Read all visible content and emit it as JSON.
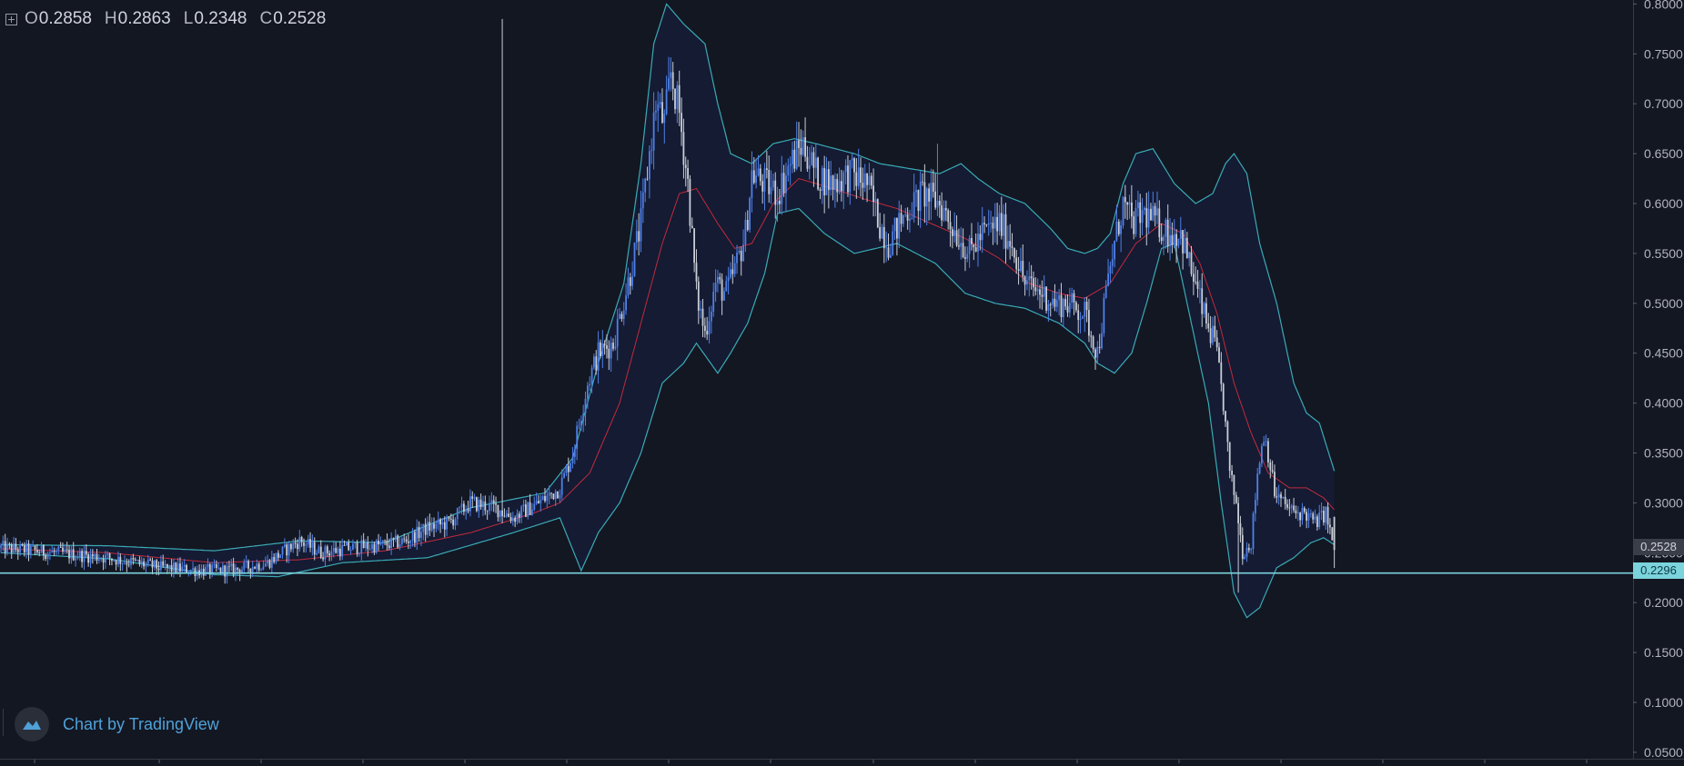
{
  "legend": {
    "o_key": "O",
    "o_val": "0.2858",
    "h_key": "H",
    "h_val": "0.2863",
    "l_key": "L",
    "l_val": "0.2348",
    "c_key": "C",
    "c_val": "0.2528"
  },
  "watermark": {
    "text": "Chart by TradingView"
  },
  "price_tags": {
    "last_price": "0.2528",
    "level": "0.2296"
  },
  "colors": {
    "background": "#131722",
    "up_candle": "#4f80e8",
    "down_candle": "#c9ced6",
    "band": "#3aaab5",
    "band_fill": "#151c35",
    "basis": "#c22a3c",
    "level_line": "#7bd3dc",
    "axis_text": "#b2b5be",
    "watermark_text": "#4fa1d8"
  },
  "chart_data": {
    "type": "candlestick",
    "title": "",
    "xlabel": "",
    "ylabel": "",
    "ylim": [
      0.045,
      0.8
    ],
    "y_ticks": [
      "0.8000",
      "0.7500",
      "0.7000",
      "0.6500",
      "0.6000",
      "0.5500",
      "0.5000",
      "0.4500",
      "0.4000",
      "0.3500",
      "0.3000",
      "0.2500",
      "0.2000",
      "0.1500",
      "0.1000",
      "0.0500"
    ],
    "indicator": "Bollinger Bands",
    "horizontal_level": 0.2296,
    "last_price": 0.2528,
    "last_bar": {
      "open": 0.2858,
      "high": 0.2863,
      "low": 0.2348,
      "close": 0.2528
    },
    "close_path": [
      [
        0,
        0.255
      ],
      [
        25,
        0.25
      ],
      [
        50,
        0.245
      ],
      [
        75,
        0.235
      ],
      [
        95,
        0.232
      ],
      [
        110,
        0.233
      ],
      [
        125,
        0.24
      ],
      [
        135,
        0.255
      ],
      [
        140,
        0.262
      ],
      [
        150,
        0.25
      ],
      [
        165,
        0.255
      ],
      [
        180,
        0.258
      ],
      [
        190,
        0.262
      ],
      [
        200,
        0.275
      ],
      [
        210,
        0.28
      ],
      [
        220,
        0.3
      ],
      [
        232,
        0.295
      ],
      [
        240,
        0.285
      ],
      [
        252,
        0.3
      ],
      [
        262,
        0.315
      ],
      [
        268,
        0.35
      ],
      [
        275,
        0.42
      ],
      [
        280,
        0.45
      ],
      [
        287,
        0.46
      ],
      [
        295,
        0.53
      ],
      [
        300,
        0.58
      ],
      [
        304,
        0.65
      ],
      [
        307,
        0.7
      ],
      [
        311,
        0.68
      ],
      [
        314,
        0.73
      ],
      [
        318,
        0.69
      ],
      [
        322,
        0.62
      ],
      [
        326,
        0.51
      ],
      [
        330,
        0.47
      ],
      [
        335,
        0.52
      ],
      [
        340,
        0.51
      ],
      [
        345,
        0.54
      ],
      [
        349,
        0.57
      ],
      [
        352,
        0.63
      ],
      [
        358,
        0.62
      ],
      [
        364,
        0.61
      ],
      [
        370,
        0.64
      ],
      [
        376,
        0.66
      ],
      [
        382,
        0.63
      ],
      [
        390,
        0.62
      ],
      [
        398,
        0.63
      ],
      [
        406,
        0.62
      ],
      [
        412,
        0.58
      ],
      [
        416,
        0.56
      ],
      [
        424,
        0.59
      ],
      [
        432,
        0.61
      ],
      [
        440,
        0.6
      ],
      [
        448,
        0.57
      ],
      [
        454,
        0.55
      ],
      [
        460,
        0.57
      ],
      [
        468,
        0.58
      ],
      [
        474,
        0.56
      ],
      [
        480,
        0.52
      ],
      [
        488,
        0.51
      ],
      [
        494,
        0.5
      ],
      [
        500,
        0.5
      ],
      [
        508,
        0.49
      ],
      [
        514,
        0.45
      ],
      [
        518,
        0.51
      ],
      [
        522,
        0.56
      ],
      [
        526,
        0.6
      ],
      [
        530,
        0.58
      ],
      [
        536,
        0.59
      ],
      [
        542,
        0.58
      ],
      [
        548,
        0.57
      ],
      [
        553,
        0.57
      ],
      [
        557,
        0.54
      ],
      [
        561,
        0.51
      ],
      [
        565,
        0.48
      ],
      [
        569,
        0.46
      ],
      [
        573,
        0.4
      ],
      [
        576,
        0.33
      ],
      [
        579,
        0.3
      ],
      [
        582,
        0.25
      ],
      [
        586,
        0.26
      ],
      [
        589,
        0.33
      ],
      [
        592,
        0.37
      ],
      [
        594,
        0.35
      ],
      [
        597,
        0.31
      ],
      [
        601,
        0.3
      ],
      [
        606,
        0.29
      ],
      [
        611,
        0.29
      ],
      [
        616,
        0.28
      ],
      [
        621,
        0.29
      ],
      [
        625,
        0.253
      ]
    ],
    "upper_band_path": [
      [
        0,
        0.258
      ],
      [
        50,
        0.257
      ],
      [
        100,
        0.252
      ],
      [
        140,
        0.262
      ],
      [
        180,
        0.26
      ],
      [
        220,
        0.295
      ],
      [
        255,
        0.31
      ],
      [
        268,
        0.345
      ],
      [
        280,
        0.44
      ],
      [
        292,
        0.52
      ],
      [
        300,
        0.64
      ],
      [
        306,
        0.76
      ],
      [
        312,
        0.8
      ],
      [
        320,
        0.78
      ],
      [
        330,
        0.76
      ],
      [
        336,
        0.7
      ],
      [
        342,
        0.65
      ],
      [
        352,
        0.64
      ],
      [
        362,
        0.66
      ],
      [
        372,
        0.665
      ],
      [
        382,
        0.66
      ],
      [
        400,
        0.65
      ],
      [
        412,
        0.64
      ],
      [
        426,
        0.635
      ],
      [
        440,
        0.63
      ],
      [
        450,
        0.64
      ],
      [
        458,
        0.625
      ],
      [
        468,
        0.61
      ],
      [
        480,
        0.6
      ],
      [
        492,
        0.575
      ],
      [
        500,
        0.555
      ],
      [
        508,
        0.55
      ],
      [
        514,
        0.555
      ],
      [
        520,
        0.57
      ],
      [
        526,
        0.62
      ],
      [
        532,
        0.65
      ],
      [
        540,
        0.655
      ],
      [
        550,
        0.62
      ],
      [
        560,
        0.6
      ],
      [
        568,
        0.61
      ],
      [
        574,
        0.64
      ],
      [
        578,
        0.65
      ],
      [
        584,
        0.63
      ],
      [
        590,
        0.56
      ],
      [
        598,
        0.5
      ],
      [
        606,
        0.42
      ],
      [
        612,
        0.39
      ],
      [
        618,
        0.38
      ],
      [
        625,
        0.332
      ]
    ],
    "lower_band_path": [
      [
        0,
        0.25
      ],
      [
        50,
        0.244
      ],
      [
        100,
        0.228
      ],
      [
        130,
        0.226
      ],
      [
        160,
        0.24
      ],
      [
        200,
        0.245
      ],
      [
        240,
        0.27
      ],
      [
        262,
        0.285
      ],
      [
        272,
        0.232
      ],
      [
        280,
        0.27
      ],
      [
        290,
        0.3
      ],
      [
        300,
        0.35
      ],
      [
        310,
        0.42
      ],
      [
        320,
        0.44
      ],
      [
        326,
        0.46
      ],
      [
        336,
        0.43
      ],
      [
        342,
        0.45
      ],
      [
        350,
        0.48
      ],
      [
        358,
        0.53
      ],
      [
        364,
        0.59
      ],
      [
        374,
        0.595
      ],
      [
        386,
        0.57
      ],
      [
        400,
        0.55
      ],
      [
        420,
        0.56
      ],
      [
        438,
        0.54
      ],
      [
        452,
        0.51
      ],
      [
        466,
        0.5
      ],
      [
        480,
        0.495
      ],
      [
        496,
        0.48
      ],
      [
        508,
        0.46
      ],
      [
        514,
        0.44
      ],
      [
        522,
        0.43
      ],
      [
        530,
        0.45
      ],
      [
        537,
        0.5
      ],
      [
        544,
        0.555
      ],
      [
        550,
        0.56
      ],
      [
        558,
        0.48
      ],
      [
        566,
        0.4
      ],
      [
        572,
        0.3
      ],
      [
        578,
        0.21
      ],
      [
        584,
        0.185
      ],
      [
        590,
        0.195
      ],
      [
        598,
        0.235
      ],
      [
        606,
        0.245
      ],
      [
        614,
        0.26
      ],
      [
        620,
        0.265
      ],
      [
        625,
        0.258
      ]
    ],
    "basis_path": [
      [
        0,
        0.254
      ],
      [
        50,
        0.25
      ],
      [
        100,
        0.24
      ],
      [
        140,
        0.243
      ],
      [
        180,
        0.252
      ],
      [
        220,
        0.27
      ],
      [
        250,
        0.29
      ],
      [
        262,
        0.3
      ],
      [
        276,
        0.33
      ],
      [
        290,
        0.4
      ],
      [
        300,
        0.48
      ],
      [
        310,
        0.56
      ],
      [
        318,
        0.61
      ],
      [
        326,
        0.615
      ],
      [
        336,
        0.58
      ],
      [
        344,
        0.555
      ],
      [
        352,
        0.56
      ],
      [
        362,
        0.6
      ],
      [
        374,
        0.625
      ],
      [
        390,
        0.615
      ],
      [
        404,
        0.605
      ],
      [
        420,
        0.595
      ],
      [
        436,
        0.58
      ],
      [
        452,
        0.565
      ],
      [
        468,
        0.545
      ],
      [
        482,
        0.52
      ],
      [
        496,
        0.51
      ],
      [
        508,
        0.505
      ],
      [
        520,
        0.52
      ],
      [
        532,
        0.56
      ],
      [
        544,
        0.58
      ],
      [
        554,
        0.57
      ],
      [
        562,
        0.54
      ],
      [
        570,
        0.49
      ],
      [
        578,
        0.42
      ],
      [
        586,
        0.37
      ],
      [
        594,
        0.33
      ],
      [
        604,
        0.315
      ],
      [
        612,
        0.315
      ],
      [
        620,
        0.305
      ],
      [
        625,
        0.293
      ]
    ]
  }
}
